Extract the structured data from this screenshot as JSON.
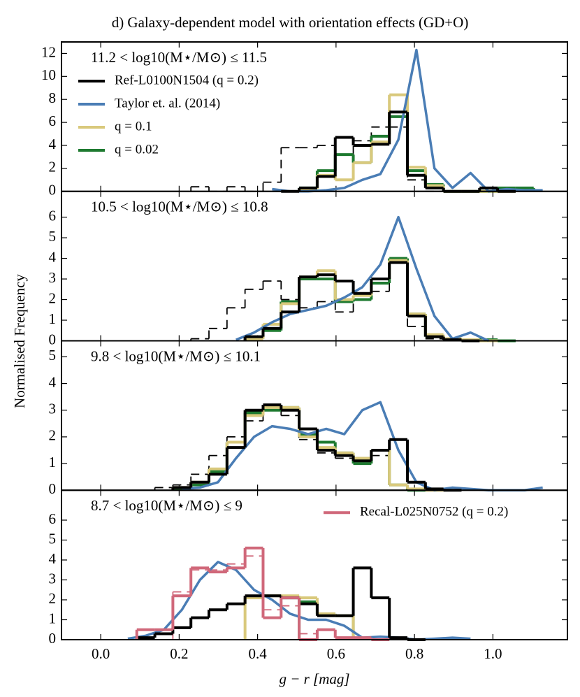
{
  "title": "d) Galaxy-dependent model with orientation effects (GD+O)",
  "ylabel": "Normalised Frequency",
  "chart_data": [
    {
      "type": "histogram",
      "annotation": "11.2 < log10(M⋆/M⊙) ≤ 11.5",
      "legend": "upper left",
      "ylim": [
        0,
        13
      ],
      "yticks": [
        0,
        2,
        4,
        6,
        8,
        10,
        12
      ],
      "bins": [
        0,
        0.046,
        0.092,
        0.138,
        0.184,
        0.23,
        0.276,
        0.322,
        0.368,
        0.414,
        0.46,
        0.506,
        0.552,
        0.598,
        0.644,
        0.69,
        0.736,
        0.782,
        0.828,
        0.874,
        0.92,
        0.966,
        1.012,
        1.058,
        1.104,
        1.15
      ],
      "x": [
        0.023,
        0.069,
        0.115,
        0.161,
        0.207,
        0.253,
        0.299,
        0.345,
        0.391,
        0.437,
        0.483,
        0.529,
        0.575,
        0.621,
        0.667,
        0.713,
        0.759,
        0.805,
        0.851,
        0.897,
        0.943,
        0.989,
        1.035,
        1.081,
        1.127
      ],
      "series": [
        {
          "name": "Ref-L0100N1504 (q = 0.2)",
          "color": "#000000",
          "kind": "step",
          "values": [
            null,
            null,
            null,
            null,
            null,
            null,
            null,
            null,
            null,
            null,
            0,
            0.3,
            1.3,
            4.7,
            4.0,
            4.1,
            6.9,
            1.4,
            0.3,
            0,
            0,
            0.3,
            0,
            null,
            null
          ]
        },
        {
          "name": "Taylor et. al. (2014)",
          "color": "#4a7db5",
          "kind": "line",
          "values": [
            null,
            null,
            null,
            null,
            null,
            null,
            null,
            null,
            null,
            0.2,
            0,
            0,
            0.1,
            0.3,
            1.0,
            1.5,
            4.5,
            12.3,
            2.0,
            0.3,
            1.6,
            0,
            0.2,
            0.1,
            0.1
          ]
        },
        {
          "name": "q = 0.1",
          "color": "#d9c97c",
          "kind": "step",
          "values": [
            null,
            null,
            null,
            null,
            null,
            null,
            null,
            null,
            null,
            null,
            null,
            0.2,
            1.4,
            1.0,
            2.5,
            4.3,
            8.4,
            2.1,
            0.5,
            0,
            0,
            0,
            0,
            null,
            null
          ]
        },
        {
          "name": "q = 0.02",
          "color": "#1e7a30",
          "kind": "step",
          "values": [
            null,
            null,
            null,
            null,
            null,
            null,
            null,
            null,
            null,
            null,
            null,
            0.3,
            1.8,
            3.2,
            2.5,
            4.8,
            6.5,
            1.8,
            0.6,
            0,
            0,
            0,
            0.3,
            0.3,
            null
          ]
        },
        {
          "color": "#000000",
          "kind": "step",
          "dash": true,
          "values": [
            null,
            null,
            null,
            null,
            null,
            0.4,
            0,
            0.4,
            0,
            0.8,
            3.8,
            3.8,
            4.0,
            3.2,
            4.4,
            5.6,
            5.6,
            1.0,
            0,
            null,
            null,
            null,
            null,
            null,
            null
          ]
        }
      ]
    },
    {
      "type": "histogram",
      "annotation": "10.5 < log10(M⋆/M⊙) ≤ 10.8",
      "ylim": [
        0,
        7.25
      ],
      "yticks": [
        0,
        1,
        2,
        3,
        4,
        5,
        6
      ],
      "bins": [
        0,
        0.046,
        0.092,
        0.138,
        0.184,
        0.23,
        0.276,
        0.322,
        0.368,
        0.414,
        0.46,
        0.506,
        0.552,
        0.598,
        0.644,
        0.69,
        0.736,
        0.782,
        0.828,
        0.874,
        0.92,
        0.966,
        1.012,
        1.058,
        1.104,
        1.15
      ],
      "x": [
        0.023,
        0.069,
        0.115,
        0.161,
        0.207,
        0.253,
        0.299,
        0.345,
        0.391,
        0.437,
        0.483,
        0.529,
        0.575,
        0.621,
        0.667,
        0.713,
        0.759,
        0.805,
        0.851,
        0.897,
        0.943,
        0.989,
        1.035,
        1.081,
        1.127
      ],
      "series": [
        {
          "color": "#000000",
          "kind": "step",
          "values": [
            null,
            null,
            null,
            null,
            null,
            null,
            null,
            null,
            0.2,
            0.6,
            1.4,
            3.1,
            3.2,
            2.9,
            2.3,
            3.0,
            3.8,
            1.2,
            0.2,
            0.05,
            0,
            null,
            null,
            null,
            null
          ]
        },
        {
          "color": "#4a7db5",
          "kind": "line",
          "values": [
            null,
            null,
            null,
            null,
            null,
            null,
            null,
            0.05,
            0.4,
            0.9,
            1.3,
            1.5,
            1.7,
            2.1,
            2.6,
            3.7,
            6.0,
            3.5,
            1.2,
            0.1,
            0.4,
            0,
            null,
            null,
            null
          ]
        },
        {
          "color": "#d9c97c",
          "kind": "step",
          "values": [
            null,
            null,
            null,
            null,
            null,
            null,
            null,
            null,
            0.1,
            0.8,
            1.8,
            3.1,
            3.4,
            2.0,
            2.2,
            3.0,
            3.9,
            1.3,
            0.3,
            0.1,
            0.05,
            0,
            null,
            null,
            null
          ]
        },
        {
          "color": "#1e7a30",
          "kind": "step",
          "values": [
            null,
            null,
            null,
            null,
            null,
            null,
            null,
            null,
            0.1,
            0.5,
            1.9,
            3.0,
            3.0,
            1.9,
            2.0,
            2.8,
            4.0,
            1.3,
            0.2,
            0.1,
            0.05,
            0.05,
            0,
            null,
            null
          ]
        },
        {
          "color": "#000000",
          "kind": "step",
          "dash": true,
          "values": [
            null,
            null,
            null,
            null,
            null,
            0.1,
            0.6,
            1.6,
            2.5,
            2.9,
            2.0,
            1.6,
            1.9,
            1.4,
            2.0,
            2.4,
            3.8,
            0.7,
            0.1,
            0,
            null,
            null,
            null,
            null,
            null
          ]
        }
      ]
    },
    {
      "type": "histogram",
      "annotation": "9.8 < log10(M⋆/M⊙) ≤ 10.1",
      "ylim": [
        0,
        5.6
      ],
      "yticks": [
        0,
        1,
        2,
        3,
        4,
        5
      ],
      "bins": [
        0,
        0.046,
        0.092,
        0.138,
        0.184,
        0.23,
        0.276,
        0.322,
        0.368,
        0.414,
        0.46,
        0.506,
        0.552,
        0.598,
        0.644,
        0.69,
        0.736,
        0.782,
        0.828,
        0.874,
        0.92,
        0.966,
        1.012,
        1.058,
        1.104,
        1.15
      ],
      "x": [
        0.023,
        0.069,
        0.115,
        0.161,
        0.207,
        0.253,
        0.299,
        0.345,
        0.391,
        0.437,
        0.483,
        0.529,
        0.575,
        0.621,
        0.667,
        0.713,
        0.759,
        0.805,
        0.851,
        0.897,
        0.943,
        0.989,
        1.035,
        1.081,
        1.127
      ],
      "series": [
        {
          "color": "#000000",
          "kind": "step",
          "values": [
            null,
            null,
            null,
            null,
            0.1,
            0.3,
            0.6,
            1.6,
            3.0,
            3.2,
            3.0,
            2.3,
            1.5,
            1.3,
            1.1,
            1.5,
            1.9,
            0.3,
            0.05,
            0,
            null,
            null,
            null,
            null,
            null
          ]
        },
        {
          "color": "#4a7db5",
          "kind": "line",
          "values": [
            null,
            null,
            null,
            null,
            0.05,
            0.1,
            0.3,
            1.2,
            2.0,
            2.4,
            2.3,
            2.1,
            2.3,
            2.1,
            3.0,
            3.3,
            1.5,
            0.3,
            0,
            0.1,
            0.05,
            0,
            0,
            0,
            0.1
          ]
        },
        {
          "color": "#d9c97c",
          "kind": "step",
          "values": [
            null,
            null,
            null,
            null,
            0.1,
            0.3,
            0.8,
            1.8,
            2.8,
            3.1,
            3.1,
            2.0,
            1.6,
            1.4,
            1.2,
            1.5,
            0.2,
            0.05,
            0,
            null,
            null,
            null,
            null,
            null,
            null
          ]
        },
        {
          "color": "#1e7a30",
          "kind": "step",
          "values": [
            null,
            null,
            null,
            null,
            0.05,
            0.2,
            0.7,
            1.8,
            2.9,
            3.0,
            3.1,
            2.1,
            1.8,
            1.4,
            1.0,
            1.5,
            0.2,
            0,
            null,
            null,
            null,
            null,
            null,
            null,
            null
          ]
        },
        {
          "color": "#000000",
          "kind": "step",
          "dash": true,
          "values": [
            null,
            null,
            null,
            0.1,
            0.2,
            0.6,
            1.3,
            2.0,
            2.6,
            3.0,
            2.8,
            1.9,
            1.4,
            1.2,
            1.2,
            1.3,
            0.2,
            0,
            null,
            null,
            null,
            null,
            null,
            null,
            null
          ]
        }
      ]
    },
    {
      "type": "histogram",
      "annotation": "8.7 < log10(M⋆/M⊙) ≤ 9",
      "legend": "upper right",
      "ylim": [
        0,
        7.5
      ],
      "yticks": [
        0,
        1,
        2,
        3,
        4,
        5,
        6
      ],
      "xlabel": "g − r [mag]",
      "xlim": [
        -0.1,
        1.19
      ],
      "xticks": [
        {
          "value": 0,
          "label": "0.0"
        },
        0.2,
        0.4,
        0.6,
        0.8,
        {
          "value": 1,
          "label": "1.0"
        }
      ],
      "bins": [
        0,
        0.046,
        0.092,
        0.138,
        0.184,
        0.23,
        0.276,
        0.322,
        0.368,
        0.414,
        0.46,
        0.506,
        0.552,
        0.598,
        0.644,
        0.69,
        0.736,
        0.782,
        0.828,
        0.874,
        0.92,
        0.966,
        1.012,
        1.058,
        1.104,
        1.15
      ],
      "x": [
        0.023,
        0.069,
        0.115,
        0.161,
        0.207,
        0.253,
        0.299,
        0.345,
        0.391,
        0.437,
        0.483,
        0.529,
        0.575,
        0.621,
        0.667,
        0.713,
        0.759,
        0.805,
        0.851,
        0.897,
        0.943,
        0.989,
        1.035,
        1.081,
        1.127
      ],
      "series": [
        {
          "name": "Recal-L025N0752 (q = 0.2)",
          "color": "#d0687a",
          "kind": "step",
          "values": [
            null,
            null,
            0.5,
            0.5,
            2.2,
            3.6,
            3.4,
            3.6,
            4.6,
            1.1,
            2.1,
            0,
            0.5,
            0.1,
            0.1,
            0,
            null,
            null,
            null,
            null,
            null,
            null,
            null,
            null,
            null
          ]
        },
        {
          "color": "#000000",
          "kind": "step",
          "values": [
            null,
            null,
            0.1,
            0.3,
            0.6,
            1.1,
            1.5,
            1.8,
            2.2,
            2.2,
            2.1,
            1.8,
            1.2,
            1.2,
            3.6,
            2.1,
            0.1,
            0,
            null,
            null,
            null,
            null,
            null,
            null,
            null
          ]
        },
        {
          "color": "#4a7db5",
          "kind": "line",
          "values": [
            null,
            0.05,
            0.2,
            0.5,
            1.5,
            3.0,
            3.9,
            3.5,
            2.5,
            2.0,
            1.3,
            1.0,
            1.0,
            0.7,
            0.1,
            0.15,
            0.1,
            0,
            0.05,
            0.1,
            0.05,
            null,
            null,
            null,
            null
          ]
        },
        {
          "color": "#d9c97c",
          "kind": "step",
          "values": [
            null,
            null,
            null,
            null,
            null,
            null,
            null,
            null,
            2.1,
            2.2,
            2.2,
            2.1,
            1.3,
            1.2,
            null,
            null,
            null,
            null,
            null,
            null,
            null,
            null,
            null,
            null,
            null
          ]
        },
        {
          "color": "#1e7a30",
          "kind": "step",
          "values": [
            null,
            null,
            null,
            null,
            null,
            null,
            null,
            null,
            null,
            null,
            null,
            1.9,
            1.3,
            1.2,
            null,
            null,
            null,
            null,
            null,
            null,
            null,
            null,
            null,
            null,
            null
          ]
        },
        {
          "color": "#d0687a",
          "kind": "step",
          "dash": true,
          "values": [
            null,
            null,
            null,
            null,
            2.4,
            3.5,
            3.5,
            3.8,
            4.2,
            1.5,
            1.7,
            0.3,
            0,
            null,
            null,
            null,
            null,
            null,
            null,
            null,
            null,
            null,
            null,
            null,
            null
          ]
        }
      ]
    }
  ]
}
